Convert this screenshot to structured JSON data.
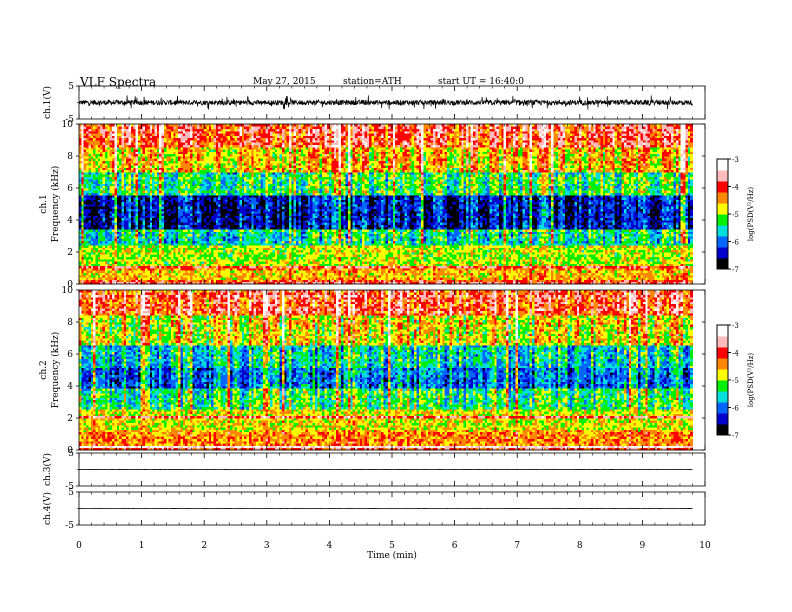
{
  "header": {
    "title": "VLF  Spectra",
    "date": "May 27, 2015",
    "station": "station=ATH",
    "start": "start  UT =   16:40:0"
  },
  "chart_data": [
    {
      "id": "ch1-waveform",
      "type": "line",
      "ylabel": "ch.1(V)",
      "ylim": [
        -5,
        5
      ],
      "yticks": [
        "5",
        "-5"
      ],
      "xlim": [
        0,
        10
      ],
      "trace_mean": 0,
      "trace_amplitude_peak": 2.2,
      "trace_extent_min": 9.8,
      "trace_color": "#000000"
    },
    {
      "id": "ch1-spectrogram",
      "type": "heatmap",
      "ylabel": "Frequency  (kHz)",
      "channel_label": "ch.1",
      "ylim": [
        0,
        10
      ],
      "yticks": [
        "0",
        "2",
        "4",
        "6",
        "8",
        "10"
      ],
      "xlim": [
        0,
        10
      ],
      "data_extent_min": 9.8,
      "colorbar": {
        "label": "log(PSD(V²/Hz)",
        "range": [
          -7,
          -3
        ],
        "ticks": [
          "-3",
          "-4",
          "-5",
          "-6",
          "-7"
        ]
      },
      "bands_khz_to_logpsd": [
        [
          0.0,
          0.3,
          -4.2
        ],
        [
          0.3,
          1.0,
          -4.6
        ],
        [
          1.0,
          2.4,
          -4.9
        ],
        [
          2.4,
          3.4,
          -5.5
        ],
        [
          3.4,
          5.6,
          -6.4
        ],
        [
          5.6,
          7.0,
          -5.3
        ],
        [
          7.0,
          8.6,
          -4.6
        ],
        [
          8.6,
          10.0,
          -4.0
        ]
      ]
    },
    {
      "id": "ch2-spectrogram",
      "type": "heatmap",
      "ylabel": "Frequency  (kHz)",
      "channel_label": "ch.2",
      "ylim": [
        0,
        10
      ],
      "yticks": [
        "0",
        "2",
        "4",
        "6",
        "8",
        "10"
      ],
      "xlim": [
        0,
        10
      ],
      "data_extent_min": 9.8,
      "colorbar": {
        "label": "log(PSD(V²/Hz)",
        "range": [
          -7,
          -3
        ],
        "ticks": [
          "-3",
          "-4",
          "-5",
          "-6",
          "-7"
        ]
      },
      "bands_khz_to_logpsd": [
        [
          0.0,
          0.3,
          -4.0
        ],
        [
          0.3,
          1.2,
          -4.4
        ],
        [
          1.2,
          2.6,
          -4.8
        ],
        [
          2.6,
          3.8,
          -5.3
        ],
        [
          3.8,
          5.2,
          -6.0
        ],
        [
          5.2,
          6.6,
          -5.6
        ],
        [
          6.6,
          8.4,
          -4.8
        ],
        [
          8.4,
          10.0,
          -4.1
        ]
      ]
    },
    {
      "id": "ch3-waveform",
      "type": "line",
      "ylabel": "ch.3(V)",
      "ylim": [
        -5,
        5
      ],
      "yticks": [
        "5",
        "-5"
      ],
      "xlim": [
        0,
        10
      ],
      "trace_mean": 0,
      "trace_amplitude_peak": 0.1,
      "trace_extent_min": 9.8,
      "trace_color": "#000000"
    },
    {
      "id": "ch4-waveform",
      "type": "line",
      "ylabel": "ch.4(V)",
      "ylim": [
        -5,
        5
      ],
      "yticks": [
        "5",
        "-5"
      ],
      "xlim": [
        0,
        10
      ],
      "trace_mean": 0,
      "trace_amplitude_peak": 0.05,
      "trace_extent_min": 9.8,
      "trace_color": "#000000"
    }
  ],
  "xaxis": {
    "label": "Time  (min)",
    "range": [
      0,
      10
    ],
    "ticks": [
      "0",
      "1",
      "2",
      "3",
      "4",
      "5",
      "6",
      "7",
      "8",
      "9",
      "10"
    ]
  },
  "colormap": [
    "#000000",
    "#0000cc",
    "#0066ff",
    "#00dddd",
    "#00ee00",
    "#ffff00",
    "#ff8800",
    "#ff0000",
    "#ffbbbb",
    "#ffffff"
  ]
}
